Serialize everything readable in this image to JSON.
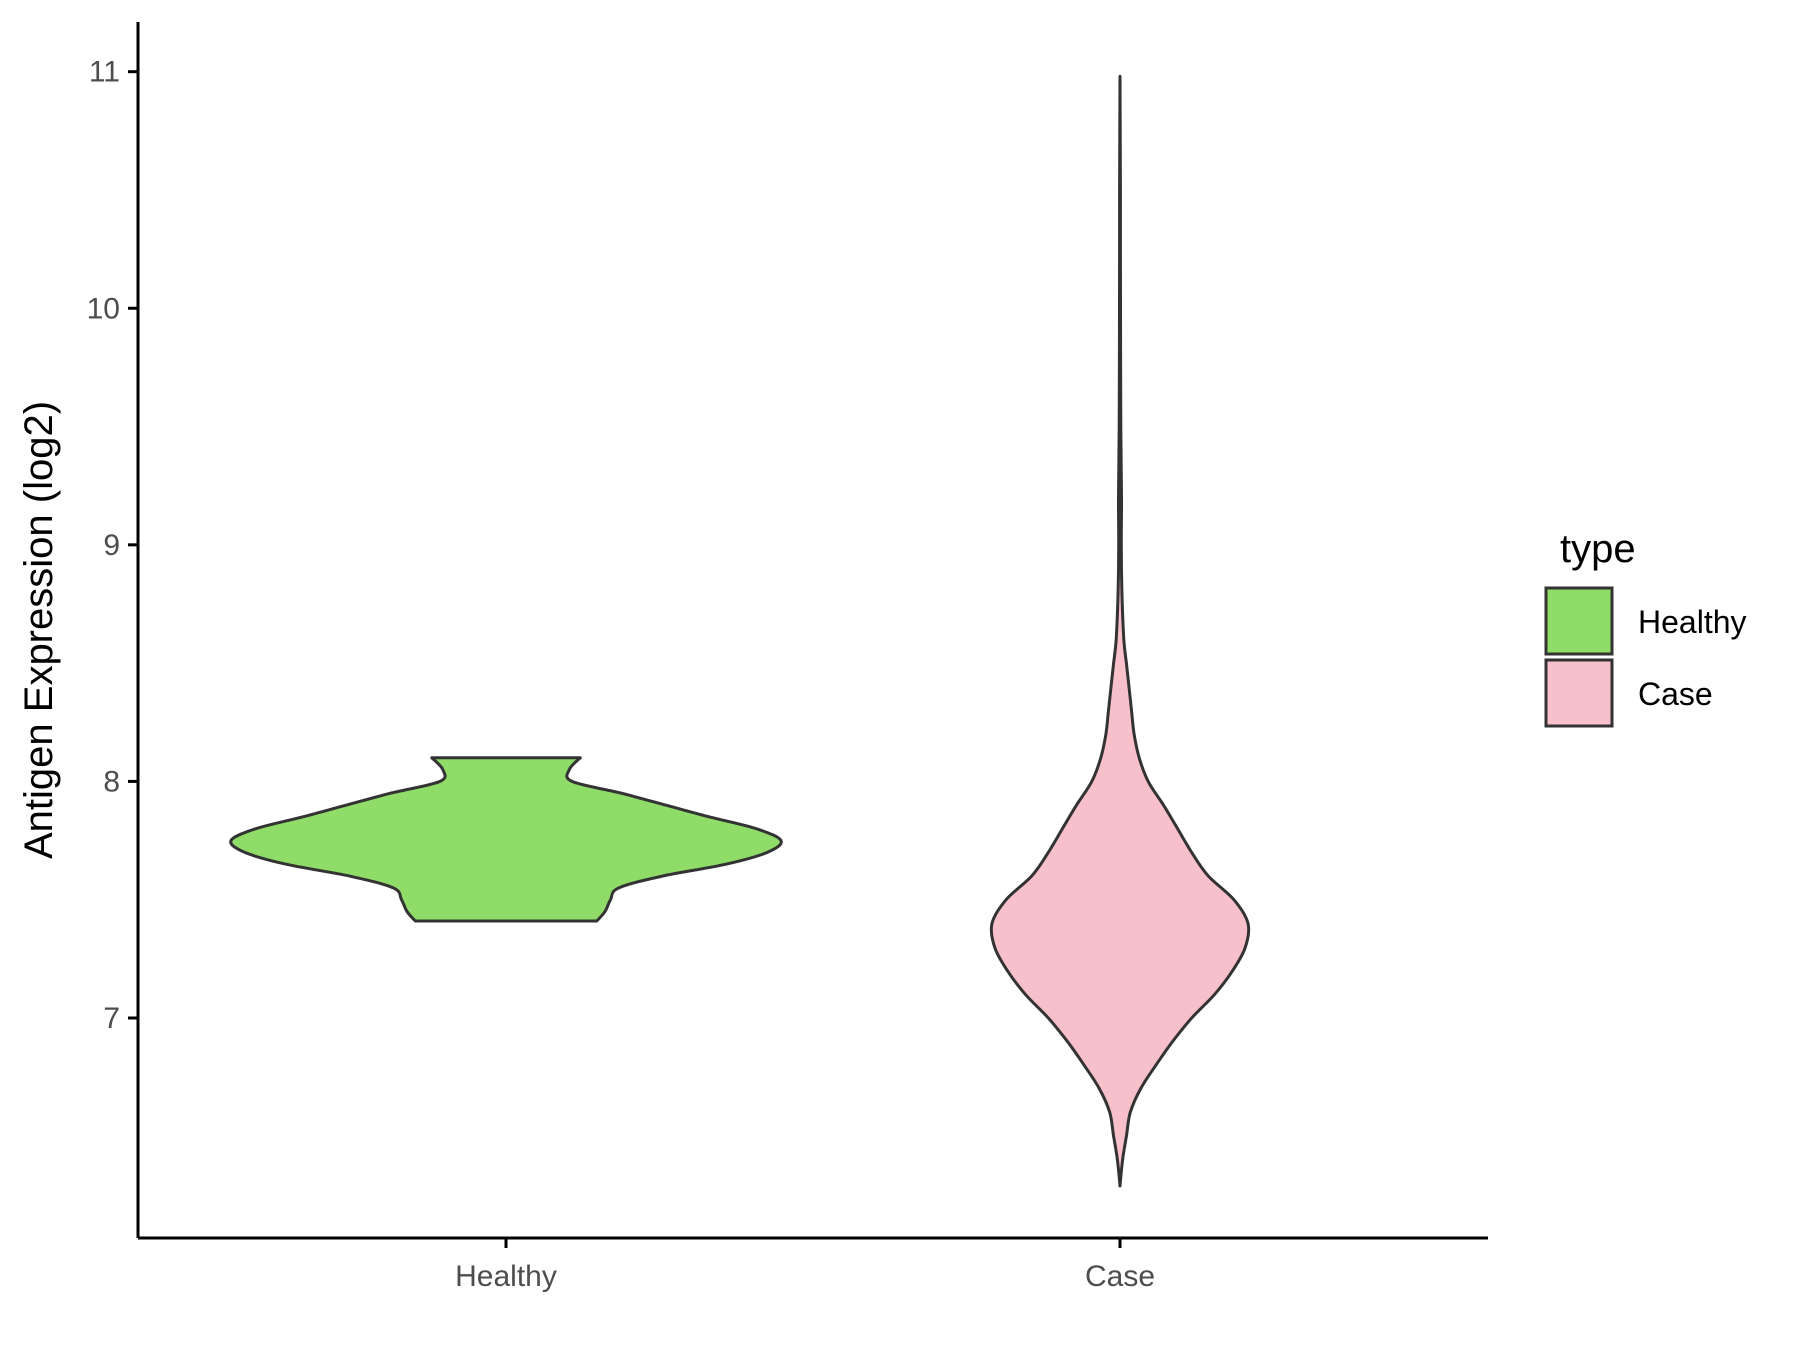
{
  "chart_data": {
    "type": "violin",
    "title": "",
    "xlabel": "",
    "ylabel": "Antigen Expression (log2)",
    "categories": [
      "Healthy",
      "Case"
    ],
    "ylim": [
      6.07,
      11.21
    ],
    "yticks": [
      7,
      8,
      9,
      10,
      11
    ],
    "grid": false,
    "legend": {
      "title": "type",
      "position": "right",
      "entries": [
        {
          "label": "Healthy",
          "color": "#90dc69"
        },
        {
          "label": "Case",
          "color": "#f8c0cb"
        }
      ]
    },
    "series": [
      {
        "name": "Healthy",
        "color": "#90dc69",
        "range": [
          7.41,
          8.1
        ],
        "density": [
          [
            7.41,
            0.33
          ],
          [
            7.45,
            0.36
          ],
          [
            7.5,
            0.38
          ],
          [
            7.55,
            0.41
          ],
          [
            7.6,
            0.57
          ],
          [
            7.65,
            0.8
          ],
          [
            7.7,
            0.95
          ],
          [
            7.75,
            1.0
          ],
          [
            7.8,
            0.91
          ],
          [
            7.85,
            0.74
          ],
          [
            7.9,
            0.58
          ],
          [
            7.95,
            0.42
          ],
          [
            8.0,
            0.24
          ],
          [
            8.05,
            0.23
          ],
          [
            8.1,
            0.27
          ]
        ]
      },
      {
        "name": "Case",
        "color": "#f8c0cb",
        "range": [
          6.29,
          10.98
        ],
        "density": [
          [
            6.29,
            0.0
          ],
          [
            6.4,
            0.02
          ],
          [
            6.5,
            0.05
          ],
          [
            6.6,
            0.08
          ],
          [
            6.7,
            0.16
          ],
          [
            6.8,
            0.28
          ],
          [
            6.9,
            0.41
          ],
          [
            7.0,
            0.56
          ],
          [
            7.1,
            0.74
          ],
          [
            7.2,
            0.88
          ],
          [
            7.3,
            0.98
          ],
          [
            7.4,
            1.0
          ],
          [
            7.5,
            0.89
          ],
          [
            7.6,
            0.69
          ],
          [
            7.7,
            0.56
          ],
          [
            7.8,
            0.45
          ],
          [
            7.9,
            0.34
          ],
          [
            8.0,
            0.22
          ],
          [
            8.1,
            0.15
          ],
          [
            8.2,
            0.11
          ],
          [
            8.3,
            0.09
          ],
          [
            8.4,
            0.07
          ],
          [
            8.5,
            0.05
          ],
          [
            8.6,
            0.03
          ],
          [
            8.8,
            0.015
          ],
          [
            9.0,
            0.01
          ],
          [
            9.2,
            0.012
          ],
          [
            9.5,
            0.006
          ],
          [
            10.0,
            0.004
          ],
          [
            10.5,
            0.003
          ],
          [
            10.98,
            0.0
          ]
        ]
      }
    ]
  }
}
